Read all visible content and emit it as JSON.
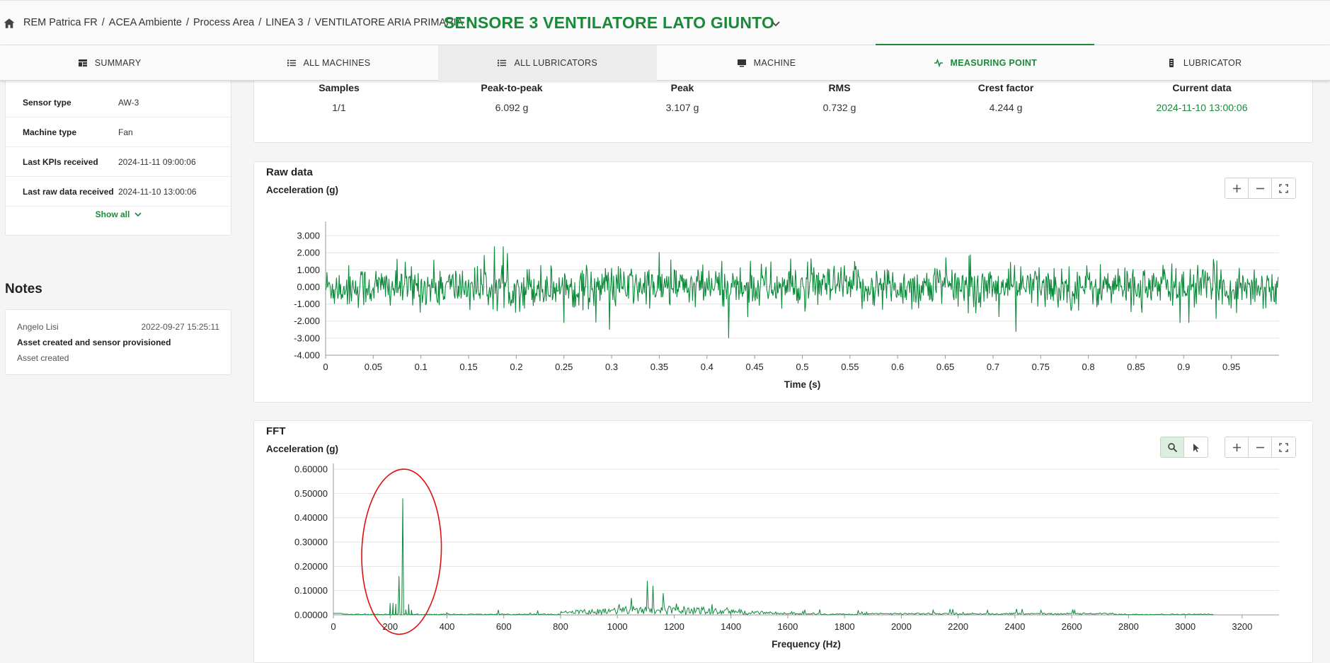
{
  "breadcrumb": {
    "items": [
      "REM Patrica FR",
      "ACEA Ambiente",
      "Process Area",
      "LINEA 3",
      "VENTILATORE ARIA PRIMARIA"
    ],
    "separator": "/"
  },
  "page_title": "SENSORE 3 VENTILATORE LATO GIUNTO",
  "tabs": [
    {
      "label": "SUMMARY",
      "icon": "dashboard-icon"
    },
    {
      "label": "ALL MACHINES",
      "icon": "list-icon"
    },
    {
      "label": "ALL LUBRICATORS",
      "icon": "list-icon"
    },
    {
      "label": "MACHINE",
      "icon": "monitor-icon"
    },
    {
      "label": "MEASURING POINT",
      "icon": "pulse-icon"
    },
    {
      "label": "LUBRICATOR",
      "icon": "lubricator-icon"
    }
  ],
  "active_tab": "MEASURING POINT",
  "info": {
    "rows": [
      {
        "key": "Sensor type",
        "value": "AW-3"
      },
      {
        "key": "Machine type",
        "value": "Fan"
      },
      {
        "key": "Last KPIs received",
        "value": "2024-11-11 09:00:06"
      },
      {
        "key": "Last raw data received",
        "value": "2024-11-10 13:00:06"
      }
    ],
    "show_all": "Show all"
  },
  "notes": {
    "title": "Notes",
    "items": [
      {
        "author": "Angelo Lisi",
        "date": "2022-09-27 15:25:11",
        "title": "Asset created and sensor provisioned",
        "body": "Asset created"
      }
    ]
  },
  "kpis": {
    "headers": [
      "Samples",
      "Peak-to-peak",
      "Peak",
      "RMS",
      "Crest factor",
      "Current data"
    ],
    "values": [
      "1/1",
      "6.092 g",
      "3.107 g",
      "0.732 g",
      "4.244 g",
      "2024-11-10 13:00:06"
    ]
  },
  "colors": {
    "accent": "#1a8a3a",
    "trace": "#0e8a3c",
    "annotation": "#e01010"
  },
  "chart_data": [
    {
      "type": "line",
      "title": "Raw data",
      "ylabel": "Acceleration (g)",
      "xlabel": "Time (s)",
      "xlim": [
        0,
        1
      ],
      "ylim": [
        -4,
        3.5
      ],
      "x_ticks": [
        0,
        0.05,
        0.1,
        0.15,
        0.2,
        0.25,
        0.3,
        0.35,
        0.4,
        0.45,
        0.5,
        0.55,
        0.6,
        0.65,
        0.7,
        0.75,
        0.8,
        0.85,
        0.9,
        0.95
      ],
      "x_tick_labels": [
        "0",
        "0.05",
        "0.1",
        "0.15",
        "0.2",
        "0.25",
        "0.3",
        "0.35",
        "0.4",
        "0.45",
        "0.5",
        "0.55",
        "0.6",
        "0.65",
        "0.7",
        "0.75",
        "0.8",
        "0.85",
        "0.9",
        "0.95"
      ],
      "y_ticks": [
        3,
        2,
        1,
        0,
        -1,
        -2,
        -3,
        -4
      ],
      "y_tick_labels": [
        "3.000",
        "2.000",
        "1.000",
        "0.000",
        "-1.000",
        "-2.000",
        "-3.000",
        "-4.000"
      ],
      "grid": true,
      "signal": {
        "rms": 0.732,
        "peak": 3.107,
        "min": -3.0,
        "samples_shown": 1400
      }
    },
    {
      "type": "line",
      "title": "FFT",
      "ylabel": "Acceleration (g)",
      "xlabel": "Frequency (Hz)",
      "xlim": [
        0,
        3330
      ],
      "ylim": [
        0,
        0.6
      ],
      "x_ticks": [
        0,
        200,
        400,
        600,
        800,
        1000,
        1200,
        1400,
        1600,
        1800,
        2000,
        2200,
        2400,
        2600,
        2800,
        3000,
        3200
      ],
      "x_tick_labels": [
        "0",
        "200",
        "400",
        "600",
        "800",
        "1000",
        "1200",
        "1400",
        "1600",
        "1800",
        "2000",
        "2200",
        "2400",
        "2600",
        "2800",
        "3000",
        "3200"
      ],
      "y_ticks": [
        0.6,
        0.5,
        0.4,
        0.3,
        0.2,
        0.1,
        0
      ],
      "y_tick_labels": [
        "0.60000",
        "0.50000",
        "0.40000",
        "0.30000",
        "0.20000",
        "0.10000",
        "0.00000"
      ],
      "grid": true,
      "peaks": [
        {
          "x": 245,
          "y": 0.48
        },
        {
          "x": 230,
          "y": 0.16
        },
        {
          "x": 1105,
          "y": 0.14
        },
        {
          "x": 1125,
          "y": 0.12
        },
        {
          "x": 1160,
          "y": 0.09
        },
        {
          "x": 1050,
          "y": 0.07
        }
      ],
      "annotation": {
        "shape": "ellipse",
        "x_range": [
          100,
          380
        ],
        "y_range": [
          -0.08,
          0.6
        ]
      }
    }
  ]
}
